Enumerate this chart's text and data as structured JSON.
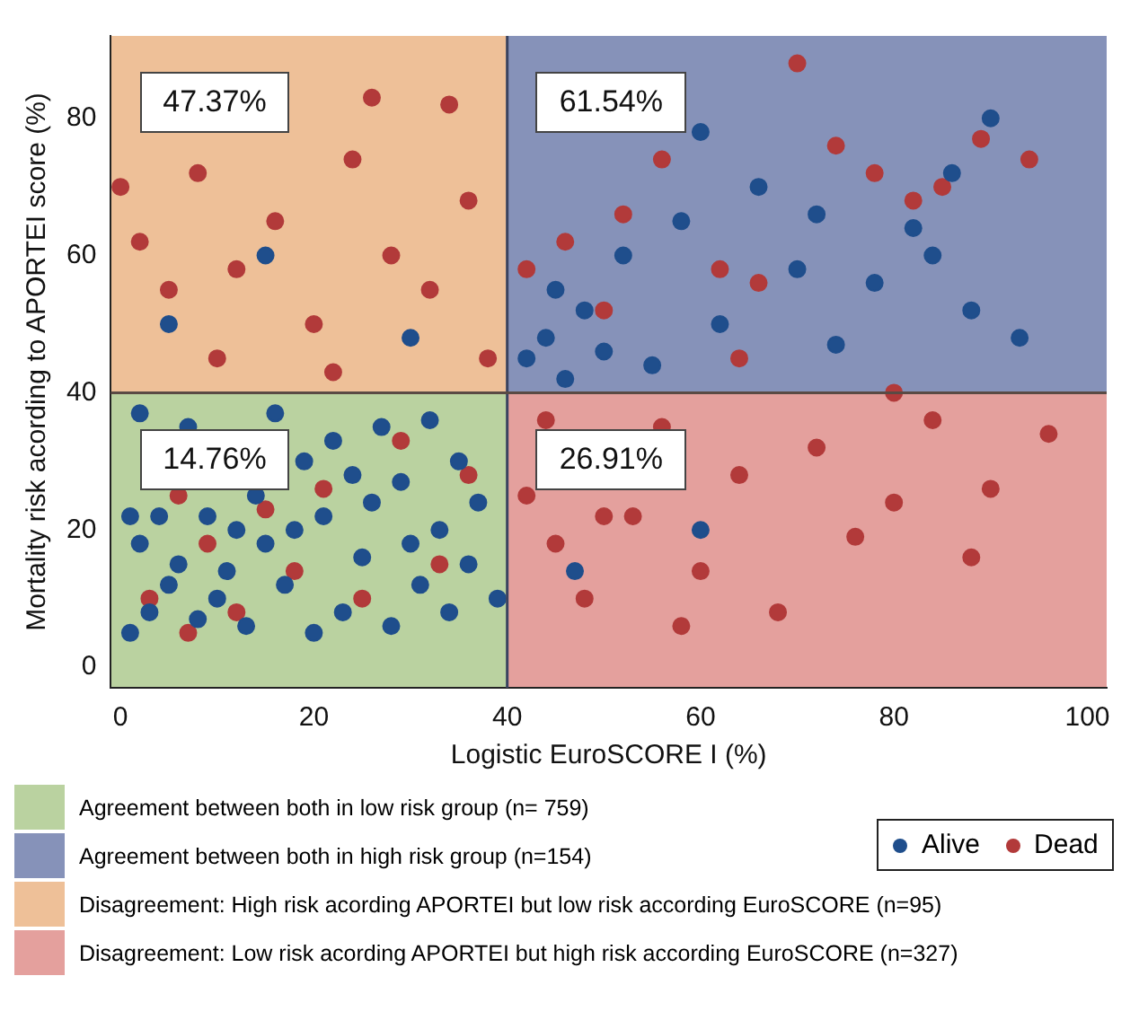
{
  "chart_data": {
    "type": "scatter",
    "xlabel": "Logistic EuroSCORE I (%)",
    "ylabel": "Mortality risk acording to APORTEI score (%)",
    "xlim": [
      -1,
      102
    ],
    "ylim": [
      -3,
      92
    ],
    "xticks": [
      0,
      20,
      40,
      60,
      80,
      100
    ],
    "yticks": [
      0,
      20,
      40,
      60,
      80
    ],
    "grid": false,
    "legend": "bottom right",
    "marker": "circle",
    "ref_lines": [
      {
        "axis": "x",
        "value": 40,
        "color": "#3a4360"
      },
      {
        "axis": "y",
        "value": 40,
        "color": "#5a4a44"
      }
    ],
    "annotations": [
      "47.37%",
      "61.54%",
      "14.76%",
      "26.91%",
      "Agreement between both in low risk group (n= 759)",
      "Agreement between both in high risk group (n=154)",
      "Disagreement: High risk acording APORTEI but low risk according EuroSCORE (n=95)",
      "Disagreement: Low risk acording APORTEI but high risk according EuroSCORE (n=327)"
    ],
    "series": [
      {
        "name": "Alive",
        "color": "#1f4e8c",
        "x": [
          1,
          3,
          5,
          2,
          4,
          6,
          8,
          10,
          12,
          14,
          1,
          7,
          9,
          11,
          13,
          15,
          17,
          19,
          21,
          23,
          25,
          27,
          29,
          31,
          33,
          35,
          37,
          39,
          16,
          20,
          24,
          28,
          32,
          36,
          2,
          18,
          22,
          26,
          30,
          34,
          42,
          44,
          46,
          48,
          52,
          55,
          58,
          62,
          66,
          70,
          74,
          78,
          82,
          86,
          88,
          90,
          93,
          45,
          50,
          60,
          72,
          84,
          5,
          15,
          30,
          47,
          60
        ],
        "values": [
          5,
          8,
          12,
          18,
          22,
          15,
          7,
          10,
          20,
          25,
          22,
          35,
          22,
          14,
          6,
          18,
          12,
          30,
          22,
          8,
          16,
          35,
          27,
          12,
          20,
          30,
          24,
          10,
          37,
          5,
          28,
          6,
          36,
          15,
          37,
          20,
          33,
          24,
          18,
          8,
          45,
          48,
          42,
          52,
          60,
          44,
          65,
          50,
          70,
          58,
          47,
          56,
          64,
          72,
          52,
          80,
          48,
          55,
          46,
          78,
          66,
          60,
          50,
          60,
          48,
          14,
          20
        ]
      },
      {
        "name": "Dead",
        "color": "#b23a3a",
        "x": [
          0,
          2,
          5,
          8,
          12,
          16,
          20,
          24,
          28,
          32,
          36,
          38,
          10,
          22,
          34,
          26,
          3,
          6,
          9,
          12,
          15,
          18,
          21,
          25,
          29,
          33,
          36,
          7,
          42,
          45,
          48,
          50,
          53,
          56,
          60,
          64,
          68,
          72,
          76,
          80,
          84,
          90,
          96,
          44,
          58,
          88,
          42,
          46,
          52,
          56,
          62,
          66,
          70,
          74,
          78,
          82,
          85,
          89,
          94,
          50,
          64,
          80
        ],
        "values": [
          70,
          62,
          55,
          72,
          58,
          65,
          50,
          74,
          60,
          55,
          68,
          45,
          45,
          43,
          82,
          83,
          10,
          25,
          18,
          8,
          23,
          14,
          26,
          10,
          33,
          15,
          28,
          5,
          25,
          18,
          10,
          22,
          22,
          35,
          14,
          28,
          8,
          32,
          19,
          24,
          36,
          26,
          34,
          36,
          6,
          16,
          58,
          62,
          66,
          74,
          58,
          56,
          88,
          76,
          72,
          68,
          70,
          77,
          74,
          52,
          45,
          40
        ]
      }
    ]
  }
}
